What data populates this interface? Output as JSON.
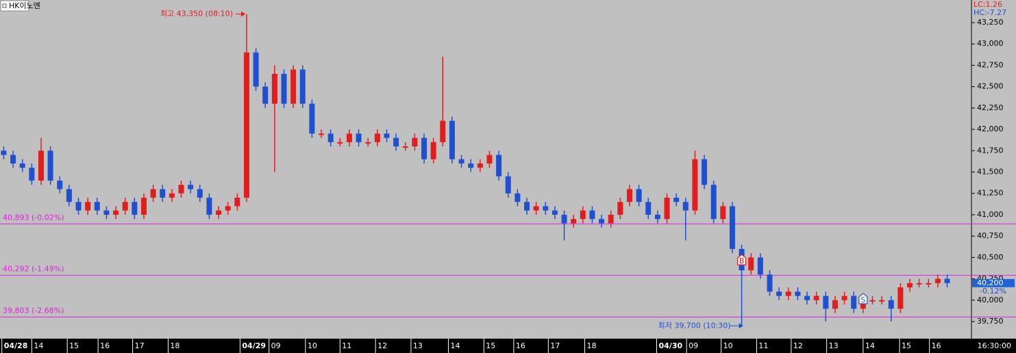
{
  "chart_data": {
    "type": "candlestick",
    "title": "HK이노엔",
    "up_color": "#e01e1e",
    "down_color": "#1e50d0",
    "level_color": "#e020e0",
    "x": [
      0,
      1,
      2,
      3,
      4,
      5,
      6,
      7,
      8,
      9,
      10,
      11,
      12,
      13,
      14,
      15,
      16,
      17,
      18,
      19,
      20,
      21,
      22,
      23,
      24,
      25,
      26,
      27,
      28,
      29,
      30,
      31,
      32,
      33,
      34,
      35,
      36,
      37,
      38,
      39,
      40,
      41,
      42,
      43,
      44,
      45,
      46,
      47,
      48,
      49,
      50,
      51,
      52,
      53,
      54,
      55,
      56,
      57,
      58,
      59,
      60,
      61,
      62,
      63,
      64,
      65,
      66,
      67,
      68,
      69,
      70,
      71,
      72,
      73,
      74,
      75,
      76,
      77,
      78,
      79,
      80,
      81,
      82,
      83,
      84,
      85,
      86,
      87,
      88,
      89,
      90,
      91,
      92,
      93,
      94,
      95,
      96,
      97,
      98,
      99,
      100,
      101
    ],
    "open": [
      41750,
      41700,
      41600,
      41550,
      41400,
      41750,
      41400,
      41300,
      41150,
      41050,
      41150,
      41050,
      41000,
      41050,
      41150,
      41000,
      41200,
      41300,
      41200,
      41250,
      41350,
      41300,
      41200,
      41000,
      41050,
      41100,
      41200,
      42900,
      42500,
      42300,
      42650,
      42300,
      42700,
      42300,
      41950,
      41950,
      41850,
      41850,
      41950,
      41850,
      41850,
      41950,
      41900,
      41800,
      41800,
      41900,
      41650,
      41850,
      42100,
      41650,
      41600,
      41550,
      41600,
      41700,
      41450,
      41250,
      41150,
      41050,
      41100,
      41050,
      41000,
      40900,
      40950,
      41050,
      40950,
      40900,
      41000,
      41150,
      41300,
      41150,
      41000,
      40950,
      41200,
      41150,
      41050,
      41650,
      41350,
      40950,
      41100,
      40600,
      40350,
      40500,
      40300,
      40100,
      40050,
      40100,
      40050,
      40000,
      40050,
      39900,
      40000,
      40050,
      39900,
      40000,
      40000,
      40000,
      39900,
      40150,
      40200,
      40200,
      40200,
      40250
    ],
    "high": [
      41800,
      41750,
      41650,
      41600,
      41900,
      41800,
      41450,
      41350,
      41200,
      41200,
      41200,
      41100,
      41100,
      41200,
      41200,
      41250,
      41350,
      41350,
      41300,
      41400,
      41400,
      41350,
      41250,
      41100,
      41150,
      41250,
      43350,
      42950,
      42550,
      42750,
      42700,
      42750,
      42750,
      42350,
      42000,
      42000,
      41900,
      42000,
      42000,
      41900,
      42000,
      42000,
      41950,
      41850,
      41950,
      41950,
      41900,
      42850,
      42150,
      41700,
      41650,
      41650,
      41750,
      41750,
      41500,
      41300,
      41200,
      41150,
      41150,
      41100,
      41050,
      41000,
      41100,
      41100,
      41000,
      41050,
      41200,
      41350,
      41350,
      41200,
      41050,
      41250,
      41250,
      41200,
      41750,
      41700,
      41400,
      41150,
      41150,
      40650,
      40550,
      40550,
      40350,
      40150,
      40150,
      40150,
      40100,
      40100,
      40100,
      40050,
      40100,
      40100,
      40050,
      40050,
      40050,
      40050,
      40200,
      40250,
      40250,
      40250,
      40300,
      40300
    ],
    "low": [
      41650,
      41550,
      41500,
      41350,
      41350,
      41350,
      41250,
      41100,
      41000,
      41000,
      41000,
      40950,
      40950,
      41000,
      40950,
      40950,
      41150,
      41150,
      41150,
      41200,
      41250,
      41150,
      40950,
      40950,
      41000,
      41050,
      41150,
      42450,
      42250,
      41500,
      42250,
      42250,
      42250,
      41900,
      41900,
      41800,
      41800,
      41800,
      41800,
      41800,
      41800,
      41850,
      41750,
      41750,
      41750,
      41600,
      41600,
      41800,
      41600,
      41550,
      41500,
      41500,
      41550,
      41400,
      41200,
      41100,
      41000,
      41000,
      41000,
      40950,
      40700,
      40850,
      40900,
      40900,
      40850,
      40850,
      40950,
      41100,
      41100,
      40950,
      40900,
      40900,
      41100,
      40700,
      41000,
      41300,
      40900,
      40900,
      40550,
      39700,
      40300,
      40250,
      40050,
      40000,
      40000,
      40000,
      39950,
      39950,
      39750,
      39850,
      39950,
      39850,
      39850,
      39950,
      39950,
      39750,
      39850,
      40100,
      40150,
      40150,
      40150,
      40150
    ],
    "close": [
      41700,
      41600,
      41550,
      41400,
      41750,
      41400,
      41300,
      41150,
      41050,
      41150,
      41050,
      41000,
      41050,
      41150,
      41000,
      41200,
      41300,
      41200,
      41250,
      41350,
      41300,
      41200,
      41000,
      41050,
      41100,
      41200,
      42900,
      42500,
      42300,
      42650,
      42300,
      42700,
      42300,
      41950,
      41950,
      41850,
      41850,
      41950,
      41850,
      41850,
      41950,
      41900,
      41800,
      41800,
      41900,
      41650,
      41850,
      42100,
      41650,
      41600,
      41550,
      41600,
      41700,
      41450,
      41250,
      41150,
      41050,
      41100,
      41050,
      41000,
      40900,
      40950,
      41050,
      40950,
      40900,
      41000,
      41150,
      41300,
      41150,
      41000,
      40950,
      41200,
      41150,
      41050,
      41650,
      41350,
      40950,
      41100,
      40600,
      40350,
      40500,
      40300,
      40100,
      40050,
      40100,
      40050,
      40000,
      40050,
      39900,
      40000,
      40050,
      39900,
      40000,
      40000,
      40000,
      39900,
      40150,
      40200,
      40200,
      40200,
      40250,
      40200
    ],
    "xlim": [
      -0.4,
      103.6
    ],
    "ylim": [
      39550,
      43514
    ],
    "xticks": [
      {
        "value": -0.2,
        "label": "04/28"
      },
      {
        "value": 3.0,
        "label": "14"
      },
      {
        "value": 6.8,
        "label": "15"
      },
      {
        "value": 10.1,
        "label": "16"
      },
      {
        "value": 13.8,
        "label": "17"
      },
      {
        "value": 17.6,
        "label": "18"
      },
      {
        "value": 25.3,
        "label": "04/29"
      },
      {
        "value": 28.4,
        "label": "09"
      },
      {
        "value": 32.3,
        "label": "10"
      },
      {
        "value": 36.0,
        "label": "11"
      },
      {
        "value": 39.8,
        "label": "12"
      },
      {
        "value": 43.6,
        "label": "13"
      },
      {
        "value": 47.6,
        "label": "14"
      },
      {
        "value": 51.4,
        "label": "15"
      },
      {
        "value": 54.6,
        "label": "16"
      },
      {
        "value": 58.3,
        "label": "17"
      },
      {
        "value": 62.2,
        "label": "18"
      },
      {
        "value": 69.9,
        "label": "04/30"
      },
      {
        "value": 73.1,
        "label": "09"
      },
      {
        "value": 76.8,
        "label": "10"
      },
      {
        "value": 80.6,
        "label": "11"
      },
      {
        "value": 84.3,
        "label": "12"
      },
      {
        "value": 88.1,
        "label": "13"
      },
      {
        "value": 92.0,
        "label": "14"
      },
      {
        "value": 95.9,
        "label": "15"
      },
      {
        "value": 99.1,
        "label": "16"
      }
    ],
    "yticks": [
      {
        "value": 39750,
        "label": "39,750"
      },
      {
        "value": 40000,
        "label": "40,000"
      },
      {
        "value": 40250,
        "label": "40,250"
      },
      {
        "value": 40500,
        "label": "40,500"
      },
      {
        "value": 40750,
        "label": "40,750"
      },
      {
        "value": 41000,
        "label": "41,000"
      },
      {
        "value": 41250,
        "label": "41,250"
      },
      {
        "value": 41500,
        "label": "41,500"
      },
      {
        "value": 41750,
        "label": "41,750"
      },
      {
        "value": 42000,
        "label": "42,000"
      },
      {
        "value": 42250,
        "label": "42,250"
      },
      {
        "value": 42500,
        "label": "42,500"
      },
      {
        "value": 42750,
        "label": "42,750"
      },
      {
        "value": 43000,
        "label": "43,000"
      },
      {
        "value": 43250,
        "label": "43,250"
      }
    ],
    "levels": [
      {
        "value": 40893,
        "label": "40,893 (-0.02%)"
      },
      {
        "value": 40292,
        "label": "40,292 (-1.49%)"
      },
      {
        "value": 39803,
        "label": "39,803 (-2.68%)"
      }
    ],
    "annotations": [
      {
        "text": "최고 43,350 (08:10)",
        "x": 26,
        "value": 43350,
        "side": "left"
      },
      {
        "text": "최저 39,700 (10:30)",
        "x": 79,
        "value": 39700,
        "side": "right"
      }
    ],
    "trade_marks": [
      {
        "label": "B",
        "x": 79,
        "value": 40470
      },
      {
        "label": "S",
        "x": 92,
        "value": 40015
      }
    ],
    "current": {
      "value": 40200,
      "label": "40,200",
      "change": "-0.12%"
    },
    "lc": "LC:1.26",
    "hc": "HC:-7.27",
    "time": "16:30:00"
  }
}
